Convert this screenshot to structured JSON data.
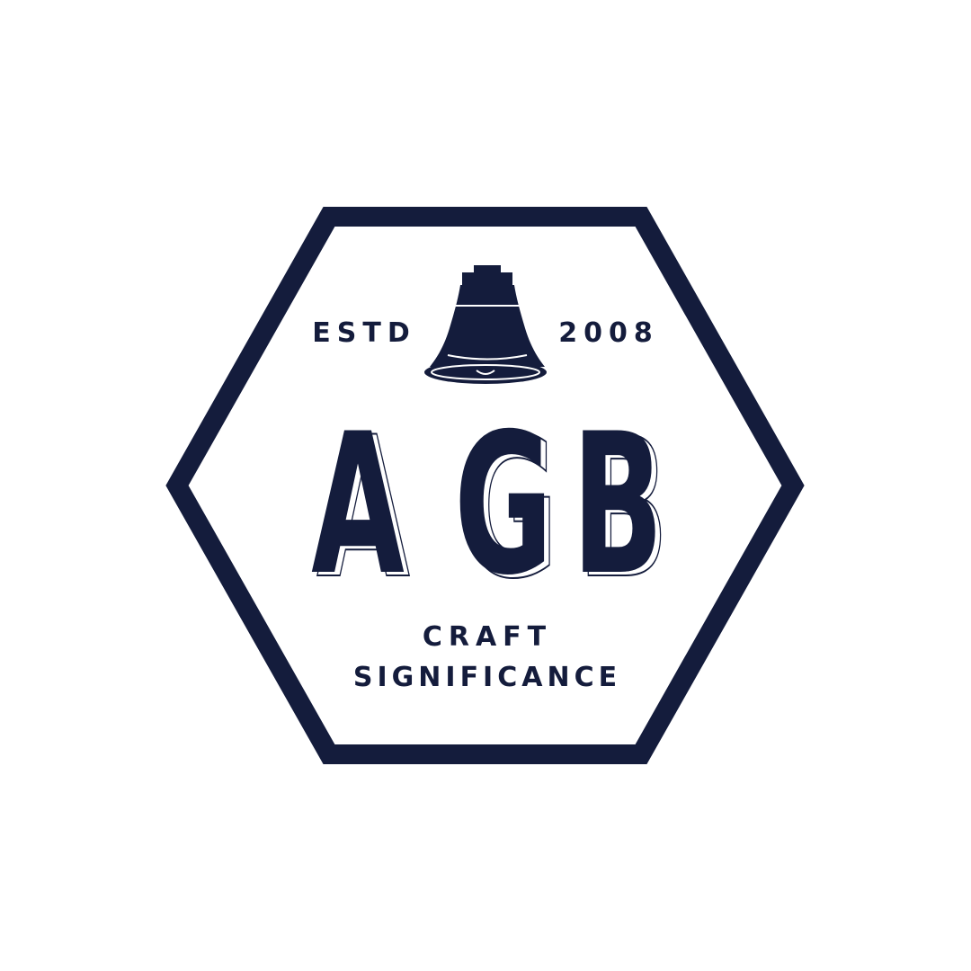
{
  "logo": {
    "estd_label": "ESTD",
    "year": "2008",
    "monogram": {
      "letter_1": "A",
      "letter_2": "G",
      "letter_3": "B"
    },
    "tagline_line_1": "CRAFT",
    "tagline_line_2": "SIGNIFICANCE",
    "emblem_icon": "bell-icon",
    "frame_shape": "hexagon"
  },
  "colors": {
    "primary": "#141c3c",
    "background": "#ffffff"
  }
}
